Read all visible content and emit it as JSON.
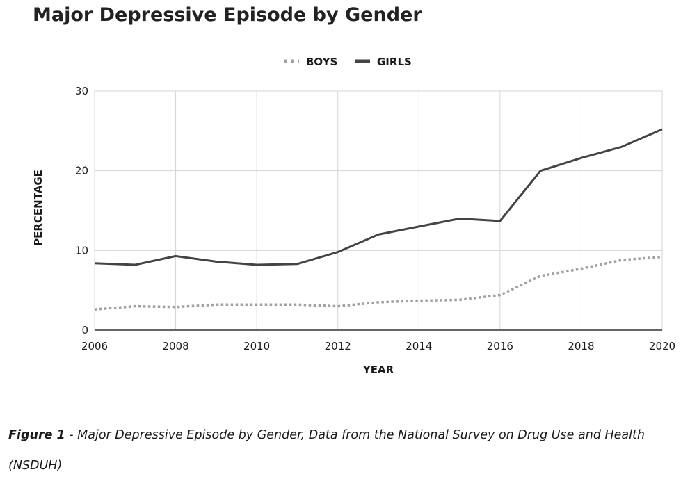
{
  "chart_data": {
    "type": "line",
    "title": "Major Depressive Episode by Gender",
    "xlabel": "YEAR",
    "ylabel": "PERCENTAGE",
    "xlim": [
      2006,
      2020
    ],
    "ylim": [
      0,
      30
    ],
    "x_ticks": [
      2006,
      2008,
      2010,
      2012,
      2014,
      2016,
      2018,
      2020
    ],
    "y_ticks": [
      0,
      10,
      20,
      30
    ],
    "grid": true,
    "legend_position": "top-center",
    "x": [
      2006,
      2007,
      2008,
      2009,
      2010,
      2011,
      2012,
      2013,
      2014,
      2015,
      2016,
      2017,
      2018,
      2019,
      2020
    ],
    "series": [
      {
        "name": "BOYS",
        "style": "dotted",
        "color": "#a0a0a0",
        "values": [
          2.6,
          3.0,
          2.9,
          3.2,
          3.2,
          3.2,
          3.0,
          3.5,
          3.7,
          3.8,
          4.4,
          6.8,
          7.7,
          8.8,
          9.2
        ]
      },
      {
        "name": "GIRLS",
        "style": "solid",
        "color": "#444444",
        "values": [
          8.4,
          8.2,
          9.3,
          8.6,
          8.2,
          8.3,
          9.8,
          12.0,
          13.0,
          14.0,
          13.7,
          20.0,
          21.6,
          23.0,
          25.2
        ]
      }
    ]
  },
  "caption": {
    "label": "Figure 1",
    "text": " - Major Depressive Episode by Gender, Data from the National Survey on Drug Use and Health (NSDUH)"
  }
}
